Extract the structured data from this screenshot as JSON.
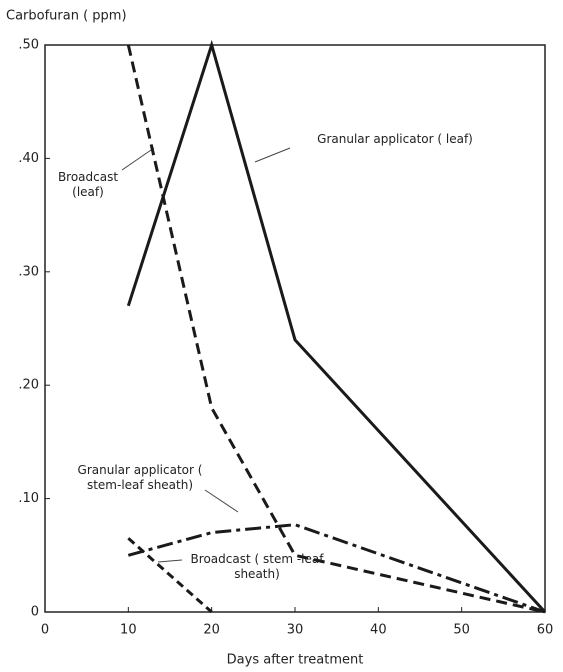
{
  "chart_data": {
    "type": "line",
    "y_label": "Carbofuran ( ppm)",
    "x_label": "Days after treatment",
    "xlim": [
      0,
      60
    ],
    "xticks": [
      0,
      10,
      20,
      30,
      40,
      50,
      60
    ],
    "ylim": [
      0,
      0.5
    ],
    "yticks": [
      0,
      {
        "value": 0.1,
        "label": ".10"
      },
      {
        "value": 0.2,
        "label": ".20"
      },
      {
        "value": 0.3,
        "label": ".30"
      },
      {
        "value": 0.4,
        "label": ".40"
      },
      {
        "value": 0.5,
        "label": ".50"
      }
    ],
    "series": [
      {
        "name": "Granular applicator ( leaf)",
        "color": "#1a1a1a",
        "dash": "none",
        "x": [
          10,
          20,
          30,
          60
        ],
        "values": [
          0.27,
          0.5,
          0.24,
          0
        ]
      },
      {
        "name": "Broadcast (leaf)",
        "color": "#1a1a1a",
        "dash": "11,6",
        "x": [
          10,
          20,
          30,
          60
        ],
        "values": [
          0.5,
          0.18,
          0.05,
          0
        ]
      },
      {
        "name": "Granular applicator ( stem-leaf sheath)",
        "color": "#1a1a1a",
        "dash": "16,5,4,5",
        "x": [
          10,
          20,
          30,
          60
        ],
        "values": [
          0.05,
          0.07,
          0.077,
          0
        ]
      },
      {
        "name": "Broadcast ( stem -leaf sheath)",
        "color": "#1a1a1a",
        "dash": "8,5",
        "x": [
          10,
          20
        ],
        "values": [
          0.065,
          0
        ]
      }
    ]
  }
}
